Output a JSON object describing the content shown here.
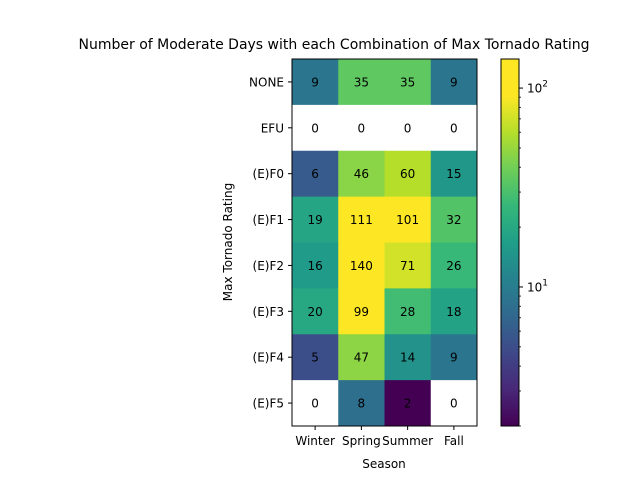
{
  "chart_data": {
    "type": "heatmap",
    "title": "Number of Moderate Days with each Combination of Max Tornado Rating",
    "xlabel": "Season",
    "ylabel": "Max Tornado Rating",
    "x_categories": [
      "Winter",
      "Spring",
      "Summer",
      "Fall"
    ],
    "y_categories": [
      "NONE",
      "EFU",
      "(E)F0",
      "(E)F1",
      "(E)F2",
      "(E)F3",
      "(E)F4",
      "(E)F5"
    ],
    "values": [
      [
        9,
        35,
        35,
        9
      ],
      [
        0,
        0,
        0,
        0
      ],
      [
        6,
        46,
        60,
        15
      ],
      [
        19,
        111,
        101,
        32
      ],
      [
        16,
        140,
        71,
        26
      ],
      [
        20,
        99,
        28,
        18
      ],
      [
        5,
        47,
        14,
        9
      ],
      [
        0,
        8,
        2,
        0
      ]
    ],
    "zero_cells_rendering": "white (masked on log scale)",
    "colormap": "viridis",
    "colorbar": {
      "scale": "log",
      "range": [
        2,
        140
      ],
      "major_ticks": [
        {
          "value": 10,
          "base": "10",
          "exp": "1"
        },
        {
          "value": 100,
          "base": "10",
          "exp": "2"
        }
      ],
      "minor_ticks": [
        2,
        3,
        4,
        5,
        6,
        7,
        8,
        9,
        20,
        30,
        40,
        50,
        60,
        70,
        80,
        90
      ]
    },
    "grid": false
  }
}
